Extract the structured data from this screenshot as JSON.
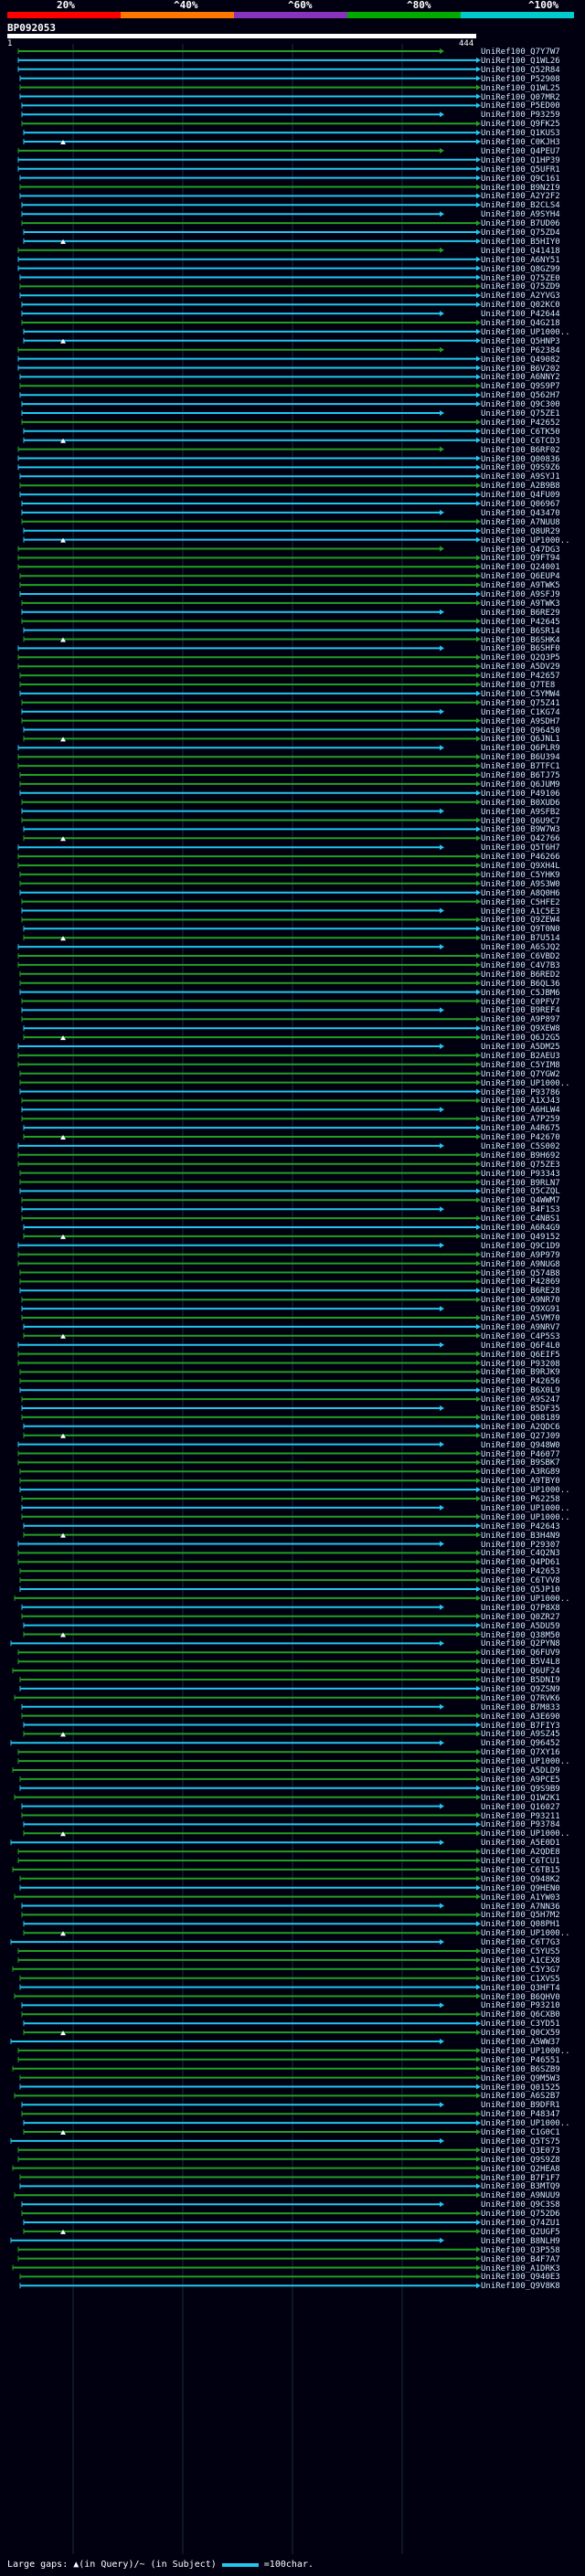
{
  "header": {
    "percent_labels": [
      "20%",
      "^40%",
      "^60%",
      "^80%",
      "^100%"
    ],
    "scale_colors": [
      "#ff0000",
      "#ff7700",
      "#8833bb",
      "#00aa00",
      "#00cccc"
    ],
    "query_id": "BP092053",
    "ruler_start": "1",
    "ruler_end": "444"
  },
  "hits": [
    "UniRef100_Q7Y7W7",
    "UniRef100_Q1WL26",
    "UniRef100_Q52R84",
    "UniRef100_P52908",
    "UniRef100_Q1WL25",
    "UniRef100_Q07MR2",
    "UniRef100_P5ED00",
    "UniRef100_P93259",
    "UniRef100_Q9FK25",
    "UniRef100_Q1KUS3",
    "UniRef100_C0KJH3",
    "UniRef100_Q4PEU7",
    "UniRef100_Q1HP39",
    "UniRef100_Q5UFR1",
    "UniRef100_Q9C161",
    "UniRef100_B9N2I9",
    "UniRef100_A2Y2F2",
    "UniRef100_B2CLS4",
    "UniRef100_A9SYH4",
    "UniRef100_B7UD06",
    "UniRef100_Q75ZD4",
    "UniRef100_B5HIY0",
    "UniRef100_Q41418",
    "UniRef100_A6NY51",
    "UniRef100_Q8GZ99",
    "UniRef100_Q75ZE0",
    "UniRef100_Q75ZD9",
    "UniRef100_A2YVG3",
    "UniRef100_Q02KC0",
    "UniRef100_P42644",
    "UniRef100_Q4G218",
    "UniRef100_UP1000..",
    "UniRef100_Q5HNP3",
    "UniRef100_P62384",
    "UniRef100_Q49082",
    "UniRef100_B6V202",
    "UniRef100_A6NNY2",
    "UniRef100_Q9S9P7",
    "UniRef100_Q562H7",
    "UniRef100_Q9C300",
    "UniRef100_Q75ZE1",
    "UniRef100_P42652",
    "UniRef100_C6TK50",
    "UniRef100_C6TCD3",
    "UniRef100_B6RF02",
    "UniRef100_Q00836",
    "UniRef100_Q9S9Z6",
    "UniRef100_A9SYJ1",
    "UniRef100_A2B9B8",
    "UniRef100_Q4FU09",
    "UniRef100_Q06967",
    "UniRef100_Q43470",
    "UniRef100_A7NUU8",
    "UniRef100_Q8UR29",
    "UniRef100_UP1000..",
    "UniRef100_Q47DG3",
    "UniRef100_Q9FT94",
    "UniRef100_Q24001",
    "UniRef100_Q6EUP4",
    "UniRef100_A9TWK5",
    "UniRef100_A9SFJ9",
    "UniRef100_A9TWK3",
    "UniRef100_B6RE29",
    "UniRef100_P42645",
    "UniRef100_B6SR14",
    "UniRef100_B6SHK4",
    "UniRef100_B6SHF0",
    "UniRef100_Q2Q3P5",
    "UniRef100_A5DV29",
    "UniRef100_P42657",
    "UniRef100_Q7TE8",
    "UniRef100_C5YMW4",
    "UniRef100_Q75Z41",
    "UniRef100_C1KG74",
    "UniRef100_A9SDH7",
    "UniRef100_Q96450",
    "UniRef100_Q6JNL1",
    "UniRef100_Q6PLR9",
    "UniRef100_B6U394",
    "UniRef100_B7TFC1",
    "UniRef100_B6TJ75",
    "UniRef100_Q6JUM9",
    "UniRef100_P49106",
    "UniRef100_B0XUD6",
    "UniRef100_A9SFB2",
    "UniRef100_Q6U9C7",
    "UniRef100_B9W7W3",
    "UniRef100_Q42766",
    "UniRef100_Q5T6H7",
    "UniRef100_P46266",
    "UniRef100_Q9XH4L",
    "UniRef100_C5YHK9",
    "UniRef100_A9S3W0",
    "UniRef100_A8Q0H6",
    "UniRef100_C5HFE2",
    "UniRef100_A1C5E3",
    "UniRef100_Q9ZEW4",
    "UniRef100_Q9T0N0",
    "UniRef100_B7U514",
    "UniRef100_A6SJQ2",
    "UniRef100_C6VBD2",
    "UniRef100_C4V7B3",
    "UniRef100_B6RED2",
    "UniRef100_B6QL36",
    "UniRef100_C5JBM6",
    "UniRef100_C0PFV7",
    "UniRef100_B9REF4",
    "UniRef100_A9P897",
    "UniRef100_Q9XEW8",
    "UniRef100_Q6J2G5",
    "UniRef100_A5DM25",
    "UniRef100_B2AEU3",
    "UniRef100_C5YIM8",
    "UniRef100_Q7YGW2",
    "UniRef100_UP1000..",
    "UniRef100_P93786",
    "UniRef100_A1XJ43",
    "UniRef100_A6HLW4",
    "UniRef100_A7P259",
    "UniRef100_A4R675",
    "UniRef100_P42670",
    "UniRef100_C5S002",
    "UniRef100_B9H692",
    "UniRef100_Q75ZE3",
    "UniRef100_P93343",
    "UniRef100_B9RLN7",
    "UniRef100_Q5CZQL",
    "UniRef100_Q4WWM7",
    "UniRef100_B4F1S3",
    "UniRef100_C4NBS1",
    "UniRef100_A6R4G9",
    "UniRef100_Q49152",
    "UniRef100_Q9C1D9",
    "UniRef100_A9P979",
    "UniRef100_A9NUG8",
    "UniRef100_Q574B8",
    "UniRef100_P42869",
    "UniRef100_B6RE28",
    "UniRef100_A9NR70",
    "UniRef100_Q9XG91",
    "UniRef100_A5VM70",
    "UniRef100_A9NRV7",
    "UniRef100_C4P5S3",
    "UniRef100_Q6F4L0",
    "UniRef100_Q6EIF5",
    "UniRef100_P93208",
    "UniRef100_B9RJK9",
    "UniRef100_P42656",
    "UniRef100_B6X0L9",
    "UniRef100_A9S247",
    "UniRef100_B5DF35",
    "UniRef100_Q08189",
    "UniRef100_A2QDC6",
    "UniRef100_Q27J09",
    "UniRef100_Q948W0",
    "UniRef100_P46077",
    "UniRef100_B9SBK7",
    "UniRef100_A3RG89",
    "UniRef100_A9TBY0",
    "UniRef100_UP1000..",
    "UniRef100_P62258",
    "UniRef100_UP1000..",
    "UniRef100_UP1000..",
    "UniRef100_P42643",
    "UniRef100_B3H4N9",
    "UniRef100_P29307",
    "UniRef100_C4Q2N3",
    "UniRef100_Q4PD61",
    "UniRef100_P42653",
    "UniRef100_C6TVV8",
    "UniRef100_Q5JP10",
    "UniRef100_UP1000..",
    "UniRef100_Q7P8X8",
    "UniRef100_Q0ZR27",
    "UniRef100_A5DU59",
    "UniRef100_Q38M50",
    "UniRef100_Q2PYN8",
    "UniRef100_Q6FUV9",
    "UniRef100_B5V4L8",
    "UniRef100_Q6UF24",
    "UniRef100_B5DNI9",
    "UniRef100_Q9ZSN9",
    "UniRef100_Q7RVK6",
    "UniRef100_B7M833",
    "UniRef100_A3E690",
    "UniRef100_B7FIY3",
    "UniRef100_A9SZ45",
    "UniRef100_Q96452",
    "UniRef100_Q7XY16",
    "UniRef100_UP1000..",
    "UniRef100_A5DLD9",
    "UniRef100_A9PCE5",
    "UniRef100_Q9S9B9",
    "UniRef100_Q1W2K1",
    "UniRef100_Q16027",
    "UniRef100_P93211",
    "UniRef100_P93784",
    "UniRef100_UP1000..",
    "UniRef100_A5E0D1",
    "UniRef100_A2QDE8",
    "UniRef100_C6TCU1",
    "UniRef100_C6TB15",
    "UniRef100_Q948K2",
    "UniRef100_Q9HEN0",
    "UniRef100_A1YW03",
    "UniRef100_A7NN36",
    "UniRef100_Q5H7M2",
    "UniRef100_Q08PH1",
    "UniRef100_UP1000..",
    "UniRef100_C6T7G3",
    "UniRef100_C5YUS5",
    "UniRef100_A1CEX8",
    "UniRef100_C5Y3G7",
    "UniRef100_C1XVS5",
    "UniRef100_Q3HFT4",
    "UniRef100_B6QHV0",
    "UniRef100_P93210",
    "UniRef100_Q6CXB0",
    "UniRef100_C3YD51",
    "UniRef100_Q0CX59",
    "UniRef100_A5WW37",
    "UniRef100_UP1000..",
    "UniRef100_P46551",
    "UniRef100_B6SZB9",
    "UniRef100_Q9M5W3",
    "UniRef100_Q01525",
    "UniRef100_A6S2B7",
    "UniRef100_B9DFR1",
    "UniRef100_P48347",
    "UniRef100_UP1000..",
    "UniRef100_C1G0C1",
    "UniRef100_Q5TS75",
    "UniRef100_Q3E073",
    "UniRef100_Q9S9Z8",
    "UniRef100_Q2HEA8",
    "UniRef100_B7F1F7",
    "UniRef100_B3MTQ9",
    "UniRef100_A9NUU9",
    "UniRef100_Q9C3S8",
    "UniRef100_Q752D6",
    "UniRef100_Q74ZU1",
    "UniRef100_Q2UGF5",
    "UniRef100_B8NLH9",
    "UniRef100_Q3P558",
    "UniRef100_B4F7A7",
    "UniRef100_A1DRK3",
    "UniRef100_Q940E3",
    "UniRef100_Q9V8K8"
  ],
  "legend": {
    "gaps_text": "Large gaps: ▲(in Query)/~ (in Subject)",
    "scale_text": "=100char."
  }
}
